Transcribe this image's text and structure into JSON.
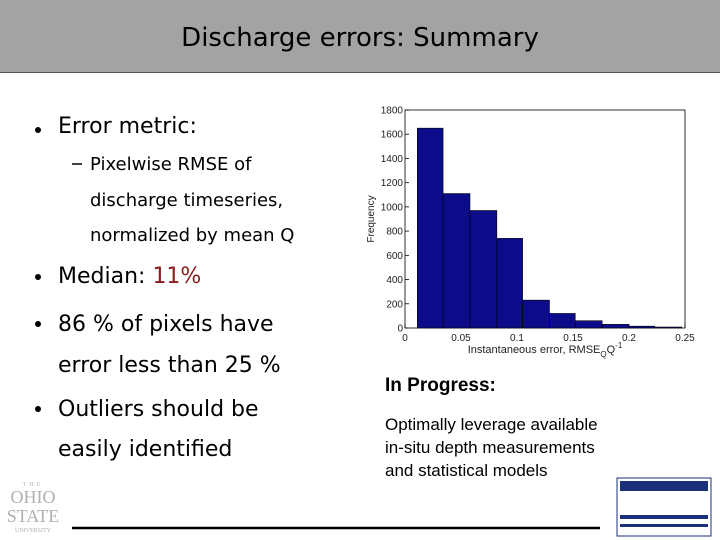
{
  "slide": {
    "title": "Discharge errors: Summary",
    "bullet1": "Error metric:",
    "sub1": [
      "Pixelwise RMSE of",
      "discharge timeseries,",
      "normalized by mean Q"
    ],
    "bullet2_label": "Median:",
    "bullet2_value": "11%",
    "bullet3": [
      "86 % of pixels have",
      "error less than 25 %"
    ],
    "bullet4": [
      "Outliers should be",
      "easily identified"
    ],
    "progress_heading": "In Progress:",
    "progress_text": [
      "Optimally leverage available",
      "in-situ depth measurements",
      "and statistical models"
    ],
    "logo": [
      "THE",
      "OHIO",
      "STATE",
      "UNIVERSITY"
    ]
  },
  "chart_data": {
    "type": "histogram",
    "bins": [
      0.011,
      0.034,
      0.058,
      0.082,
      0.105,
      0.129,
      0.152,
      0.176,
      0.2,
      0.223,
      0.247
    ],
    "values": [
      1650,
      1110,
      970,
      740,
      230,
      120,
      60,
      30,
      15,
      8
    ],
    "color": "#0c0c8a",
    "xlim": [
      0,
      0.25
    ],
    "ylim": [
      0,
      1800
    ],
    "xticks": [
      0,
      0.05,
      0.1,
      0.15,
      0.2,
      0.25
    ],
    "yticks": [
      0,
      200,
      400,
      600,
      800,
      1000,
      1200,
      1400,
      1600,
      1800
    ],
    "y_label": "Frequency",
    "x_label": {
      "main": "Instantaneous error, RMSE",
      "sub": "Q",
      "tail": "Q",
      "sup": "-1"
    }
  }
}
